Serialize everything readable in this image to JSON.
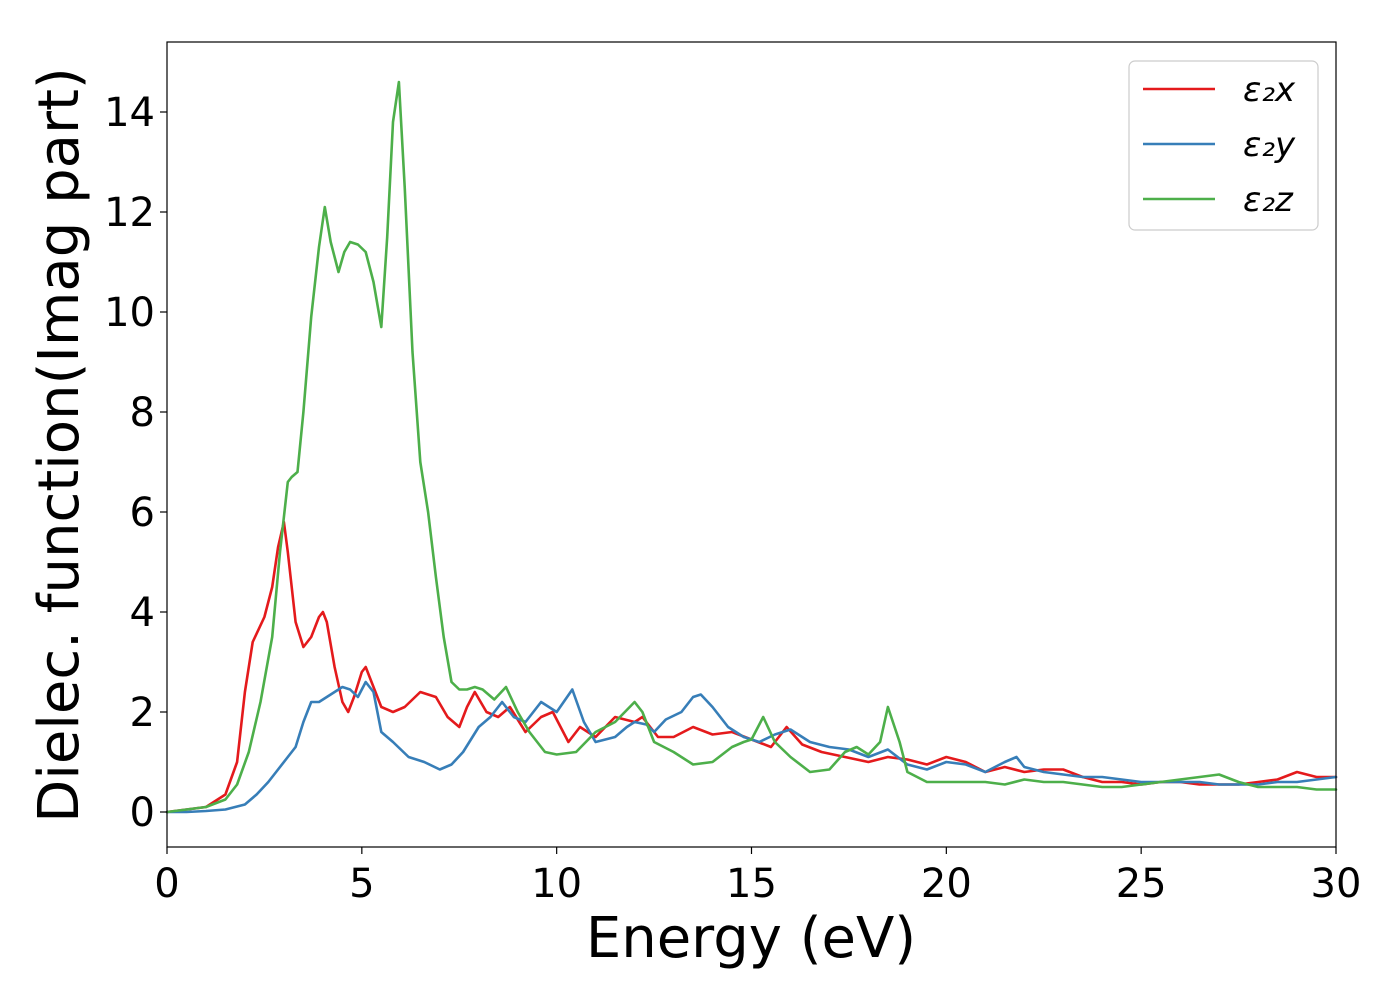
{
  "chart_data": {
    "type": "line",
    "xlabel": "Energy (eV)",
    "ylabel": "Dielec. function(Imag part)",
    "xlim": [
      0,
      30
    ],
    "ylim": [
      -0.7,
      15.4
    ],
    "xticks": [
      0,
      5,
      10,
      15,
      20,
      25,
      30
    ],
    "yticks": [
      0,
      2,
      4,
      6,
      8,
      10,
      12,
      14
    ],
    "grid": false,
    "legend_position": "top-right",
    "series": [
      {
        "name": "ε₂x",
        "color": "#e41a1c",
        "x": [
          0,
          0.5,
          1,
          1.5,
          1.8,
          2,
          2.2,
          2.5,
          2.7,
          2.85,
          3,
          3.1,
          3.3,
          3.5,
          3.7,
          3.9,
          4.0,
          4.1,
          4.3,
          4.5,
          4.65,
          4.8,
          5.0,
          5.1,
          5.3,
          5.5,
          5.8,
          6.1,
          6.5,
          6.9,
          7.2,
          7.5,
          7.7,
          7.9,
          8.2,
          8.5,
          8.8,
          9.2,
          9.6,
          9.9,
          10.3,
          10.6,
          11.0,
          11.5,
          12.0,
          12.2,
          12.6,
          13.0,
          13.5,
          14.0,
          14.5,
          15.0,
          15.5,
          15.9,
          16.3,
          16.8,
          17.4,
          18.0,
          18.5,
          19.0,
          19.5,
          20.0,
          20.5,
          21.0,
          21.5,
          22.0,
          22.5,
          23.0,
          23.5,
          24.0,
          24.5,
          25.0,
          25.5,
          26.0,
          26.5,
          27.0,
          27.5,
          28.0,
          28.5,
          29.0,
          29.5,
          30.0
        ],
        "values": [
          0,
          0.05,
          0.1,
          0.35,
          1.0,
          2.4,
          3.4,
          3.9,
          4.5,
          5.3,
          5.8,
          5.2,
          3.8,
          3.3,
          3.5,
          3.9,
          4.0,
          3.8,
          2.9,
          2.2,
          2.0,
          2.3,
          2.8,
          2.9,
          2.5,
          2.1,
          2.0,
          2.1,
          2.4,
          2.3,
          1.9,
          1.7,
          2.1,
          2.4,
          2.0,
          1.9,
          2.1,
          1.6,
          1.9,
          2.0,
          1.4,
          1.7,
          1.5,
          1.9,
          1.8,
          1.9,
          1.5,
          1.5,
          1.7,
          1.55,
          1.6,
          1.45,
          1.3,
          1.7,
          1.35,
          1.2,
          1.1,
          1.0,
          1.1,
          1.05,
          0.95,
          1.1,
          1.0,
          0.8,
          0.9,
          0.8,
          0.85,
          0.85,
          0.7,
          0.6,
          0.6,
          0.55,
          0.6,
          0.6,
          0.55,
          0.55,
          0.55,
          0.6,
          0.65,
          0.8,
          0.7,
          0.7
        ]
      },
      {
        "name": "ε₂y",
        "color": "#377eb8",
        "x": [
          0,
          0.5,
          1,
          1.5,
          2,
          2.3,
          2.6,
          2.8,
          3.1,
          3.3,
          3.5,
          3.7,
          3.9,
          4.1,
          4.3,
          4.5,
          4.7,
          4.9,
          5.1,
          5.3,
          5.5,
          5.8,
          6.2,
          6.6,
          7.0,
          7.3,
          7.6,
          8.0,
          8.3,
          8.6,
          8.9,
          9.2,
          9.6,
          10.0,
          10.4,
          10.7,
          11.0,
          11.5,
          11.8,
          12.0,
          12.3,
          12.5,
          12.8,
          13.2,
          13.5,
          13.7,
          14.0,
          14.4,
          14.8,
          15.2,
          15.6,
          16.0,
          16.5,
          17.0,
          17.5,
          18.0,
          18.5,
          19.0,
          19.5,
          20.0,
          20.5,
          21.0,
          21.5,
          21.8,
          22.0,
          22.5,
          23.0,
          23.5,
          24.0,
          24.5,
          25.0,
          25.5,
          26.0,
          26.5,
          27.0,
          27.5,
          28.0,
          28.5,
          29.0,
          29.5,
          30.0
        ],
        "values": [
          0,
          0,
          0.02,
          0.05,
          0.15,
          0.35,
          0.6,
          0.8,
          1.1,
          1.3,
          1.8,
          2.2,
          2.2,
          2.3,
          2.4,
          2.5,
          2.45,
          2.3,
          2.6,
          2.4,
          1.6,
          1.4,
          1.1,
          1.0,
          0.85,
          0.95,
          1.2,
          1.7,
          1.9,
          2.2,
          1.9,
          1.8,
          2.2,
          2.0,
          2.45,
          1.8,
          1.4,
          1.5,
          1.7,
          1.8,
          1.75,
          1.6,
          1.85,
          2.0,
          2.3,
          2.35,
          2.1,
          1.7,
          1.5,
          1.4,
          1.55,
          1.65,
          1.4,
          1.3,
          1.25,
          1.1,
          1.25,
          0.95,
          0.85,
          1.0,
          0.95,
          0.8,
          1.0,
          1.1,
          0.9,
          0.8,
          0.75,
          0.7,
          0.7,
          0.65,
          0.6,
          0.6,
          0.6,
          0.6,
          0.55,
          0.55,
          0.55,
          0.6,
          0.6,
          0.65,
          0.7
        ]
      },
      {
        "name": "ε₂z",
        "color": "#4daf4a",
        "x": [
          0,
          0.5,
          1,
          1.5,
          1.8,
          2.1,
          2.4,
          2.7,
          2.9,
          3.1,
          3.2,
          3.35,
          3.5,
          3.7,
          3.9,
          4.05,
          4.2,
          4.4,
          4.55,
          4.7,
          4.9,
          5.1,
          5.3,
          5.5,
          5.65,
          5.8,
          5.95,
          6.1,
          6.3,
          6.5,
          6.7,
          6.9,
          7.1,
          7.3,
          7.5,
          7.7,
          7.9,
          8.1,
          8.4,
          8.7,
          9.0,
          9.3,
          9.7,
          10.0,
          10.5,
          11.0,
          11.5,
          12.0,
          12.2,
          12.5,
          13.0,
          13.5,
          14.0,
          14.5,
          14.8,
          15.0,
          15.3,
          15.6,
          16.0,
          16.5,
          17.0,
          17.4,
          17.7,
          18.0,
          18.3,
          18.5,
          18.8,
          19.0,
          19.5,
          20.0,
          20.5,
          21.0,
          21.5,
          22.0,
          22.5,
          23.0,
          23.5,
          24.0,
          24.5,
          25.0,
          25.5,
          26.0,
          26.5,
          27.0,
          27.5,
          28.0,
          28.5,
          29.0,
          29.5,
          30.0
        ],
        "values": [
          0,
          0.05,
          0.1,
          0.25,
          0.55,
          1.2,
          2.2,
          3.5,
          5.2,
          6.6,
          6.7,
          6.8,
          8.0,
          9.9,
          11.3,
          12.1,
          11.4,
          10.8,
          11.2,
          11.4,
          11.35,
          11.2,
          10.6,
          9.7,
          11.5,
          13.8,
          14.6,
          12.5,
          9.2,
          7.0,
          6.0,
          4.7,
          3.5,
          2.6,
          2.45,
          2.45,
          2.5,
          2.45,
          2.25,
          2.5,
          2.0,
          1.6,
          1.2,
          1.15,
          1.2,
          1.6,
          1.8,
          2.2,
          2.0,
          1.4,
          1.2,
          0.95,
          1.0,
          1.3,
          1.4,
          1.45,
          1.9,
          1.4,
          1.1,
          0.8,
          0.85,
          1.2,
          1.3,
          1.15,
          1.4,
          2.1,
          1.4,
          0.8,
          0.6,
          0.6,
          0.6,
          0.6,
          0.55,
          0.65,
          0.6,
          0.6,
          0.55,
          0.5,
          0.5,
          0.55,
          0.6,
          0.65,
          0.7,
          0.75,
          0.6,
          0.5,
          0.5,
          0.5,
          0.45,
          0.45
        ]
      }
    ]
  }
}
